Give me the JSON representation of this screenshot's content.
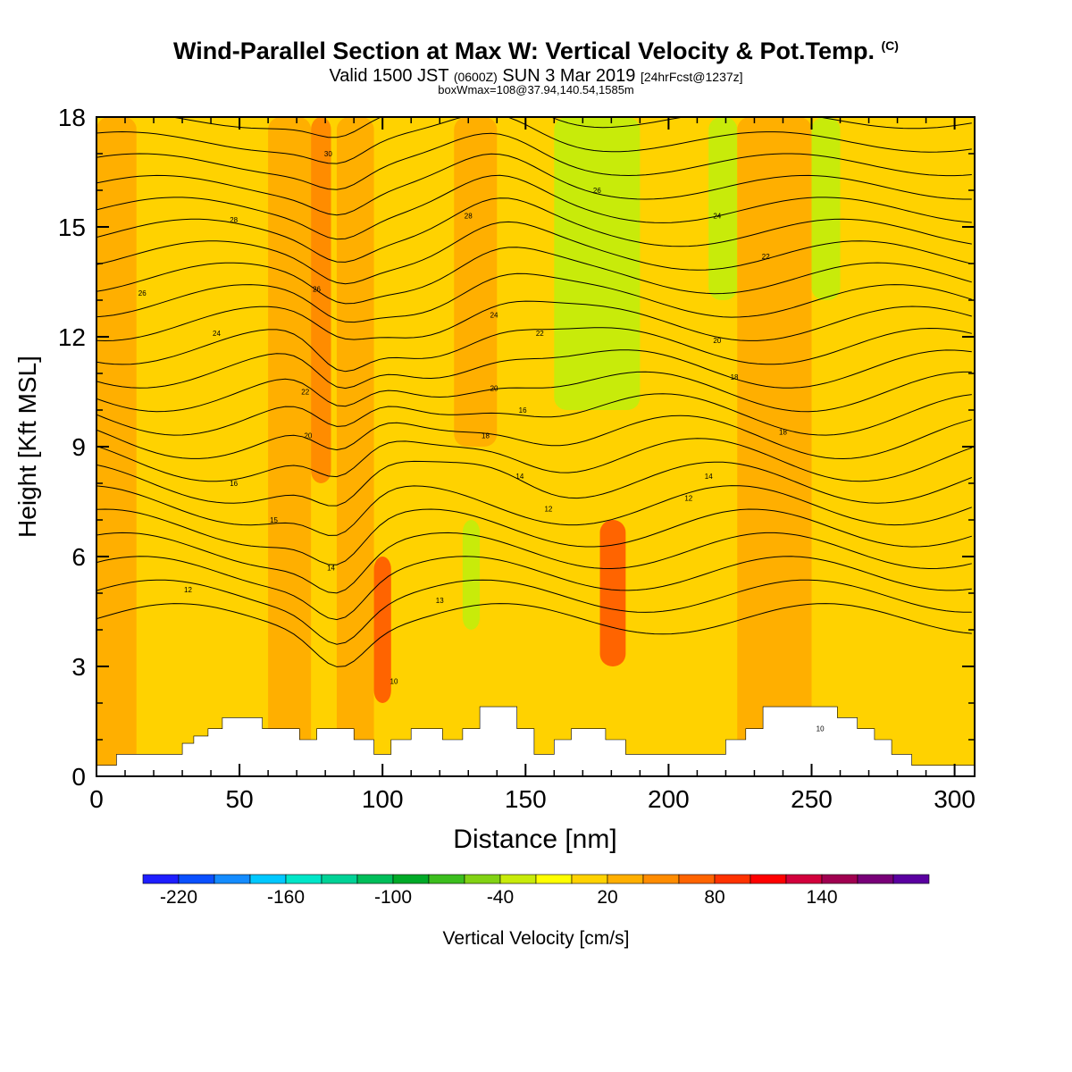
{
  "header": {
    "title": "Wind-Parallel Section at Max W: Vertical Velocity & Pot.Temp.",
    "title_mark": "(C)",
    "subtitle_main_a": "Valid 1500 JST",
    "subtitle_small_a": "(0600Z)",
    "subtitle_main_b": "SUN 3 Mar 2019",
    "subtitle_small_b": "[24hrFcst@1237z]",
    "subtitle_line2": "boxWmax=108@37.94,140.54,1585m"
  },
  "chart_data": {
    "type": "heatmap",
    "xlabel": "Distance [nm]",
    "ylabel": "Height [Kft MSL]",
    "xlim": [
      0,
      307
    ],
    "ylim": [
      0,
      18
    ],
    "x_ticks": [
      0,
      50,
      100,
      150,
      200,
      250,
      300
    ],
    "y_ticks": [
      0,
      3,
      6,
      9,
      12,
      15,
      18
    ],
    "colorbar": {
      "label": "Vertical Velocity [cm/s]",
      "tick_labels": [
        "-220",
        "-160",
        "-100",
        "-40",
        "20",
        "80",
        "140"
      ],
      "colors": [
        "#1e1eff",
        "#0a50ff",
        "#148cff",
        "#00c8ff",
        "#00e6c8",
        "#00d296",
        "#00be5a",
        "#00aa28",
        "#3cbe1e",
        "#82d214",
        "#c8eb0a",
        "#ffff00",
        "#ffd200",
        "#ffaf00",
        "#ff8c00",
        "#ff6400",
        "#ff3200",
        "#ff0000",
        "#d2003c",
        "#a00050",
        "#780078",
        "#5a00a0"
      ]
    },
    "series": [
      {
        "name": "Vertical Velocity",
        "units": "cm/s",
        "field_bands": [
          {
            "x_range": [
              0,
              14
            ],
            "y_range": [
              0,
              18
            ],
            "value": 20
          },
          {
            "x_range": [
              14,
              45
            ],
            "y_range": [
              0,
              18
            ],
            "value": 0
          },
          {
            "x_range": [
              45,
              60
            ],
            "y_range": [
              0,
              18
            ],
            "value": 10
          },
          {
            "x_range": [
              60,
              75
            ],
            "y_range": [
              0,
              18
            ],
            "value": 20
          },
          {
            "x_range": [
              75,
              82
            ],
            "y_range": [
              8,
              18
            ],
            "value": 55
          },
          {
            "x_range": [
              84,
              97
            ],
            "y_range": [
              0,
              18
            ],
            "value": 20
          },
          {
            "x_range": [
              97,
              103
            ],
            "y_range": [
              2,
              6
            ],
            "value": 70
          },
          {
            "x_range": [
              125,
              140
            ],
            "y_range": [
              9,
              18
            ],
            "value": 30
          },
          {
            "x_range": [
              128,
              134
            ],
            "y_range": [
              4,
              7
            ],
            "value": -40
          },
          {
            "x_range": [
              160,
              190
            ],
            "y_range": [
              10,
              18
            ],
            "value": -40
          },
          {
            "x_range": [
              176,
              185
            ],
            "y_range": [
              3,
              7
            ],
            "value": 75
          },
          {
            "x_range": [
              214,
              224
            ],
            "y_range": [
              13,
              18
            ],
            "value": -40
          },
          {
            "x_range": [
              224,
              250
            ],
            "y_range": [
              0,
              18
            ],
            "value": 20
          },
          {
            "x_range": [
              250,
              260
            ],
            "y_range": [
              13,
              18
            ],
            "value": -40
          }
        ]
      },
      {
        "name": "Potential Temperature",
        "units": "C",
        "contour_labels": [
          {
            "value": 30,
            "x": 81,
            "y": 17.0
          },
          {
            "value": 28,
            "x": 48,
            "y": 15.2
          },
          {
            "value": 28,
            "x": 130,
            "y": 15.3
          },
          {
            "value": 26,
            "x": 175,
            "y": 16.0
          },
          {
            "value": 24,
            "x": 217,
            "y": 15.3
          },
          {
            "value": 22,
            "x": 234,
            "y": 14.2
          },
          {
            "value": 26,
            "x": 16,
            "y": 13.2
          },
          {
            "value": 26,
            "x": 77,
            "y": 13.3
          },
          {
            "value": 24,
            "x": 139,
            "y": 12.6
          },
          {
            "value": 24,
            "x": 42,
            "y": 12.1
          },
          {
            "value": 22,
            "x": 155,
            "y": 12.1
          },
          {
            "value": 20,
            "x": 217,
            "y": 11.9
          },
          {
            "value": 22,
            "x": 73,
            "y": 10.5
          },
          {
            "value": 20,
            "x": 139,
            "y": 10.6
          },
          {
            "value": 18,
            "x": 223,
            "y": 10.9
          },
          {
            "value": 16,
            "x": 149,
            "y": 10.0
          },
          {
            "value": 20,
            "x": 74,
            "y": 9.3
          },
          {
            "value": 18,
            "x": 136,
            "y": 9.3
          },
          {
            "value": 18,
            "x": 240,
            "y": 9.4
          },
          {
            "value": 16,
            "x": 48,
            "y": 8.0
          },
          {
            "value": 14,
            "x": 148,
            "y": 8.2
          },
          {
            "value": 14,
            "x": 214,
            "y": 8.2
          },
          {
            "value": 12,
            "x": 207,
            "y": 7.6
          },
          {
            "value": 12,
            "x": 158,
            "y": 7.3
          },
          {
            "value": 15,
            "x": 62,
            "y": 7.0
          },
          {
            "value": 14,
            "x": 82,
            "y": 5.7
          },
          {
            "value": 12,
            "x": 32,
            "y": 5.1
          },
          {
            "value": 13,
            "x": 120,
            "y": 4.8
          },
          {
            "value": 10,
            "x": 104,
            "y": 2.6
          },
          {
            "value": 10,
            "x": 253,
            "y": 1.3
          }
        ],
        "contour_levels": [
          10,
          12,
          14,
          16,
          18,
          20,
          22,
          24,
          26,
          28,
          30
        ]
      }
    ],
    "terrain": {
      "x": [
        0,
        7,
        26,
        30,
        34,
        39,
        44,
        51,
        58,
        65,
        71,
        77,
        84,
        90,
        97,
        103,
        110,
        116,
        121,
        124,
        128,
        134,
        140,
        147,
        153,
        160,
        166,
        172,
        178,
        185,
        191,
        197,
        204,
        210,
        214,
        220,
        227,
        233,
        240,
        246,
        253,
        259,
        266,
        272,
        278,
        285,
        291,
        297,
        304,
        307
      ],
      "y": [
        0.3,
        0.6,
        0.6,
        0.9,
        1.1,
        1.3,
        1.6,
        1.6,
        1.3,
        1.3,
        1.0,
        1.3,
        1.3,
        1.0,
        0.6,
        1.0,
        1.3,
        1.3,
        1.0,
        1.0,
        1.3,
        1.9,
        1.9,
        1.3,
        0.6,
        1.0,
        1.3,
        1.3,
        1.0,
        0.6,
        0.6,
        0.6,
        0.6,
        0.6,
        0.6,
        1.0,
        1.3,
        1.9,
        1.9,
        1.9,
        1.9,
        1.6,
        1.3,
        1.0,
        0.6,
        0.3,
        0.3,
        0.3,
        0.3,
        0.6
      ]
    }
  }
}
